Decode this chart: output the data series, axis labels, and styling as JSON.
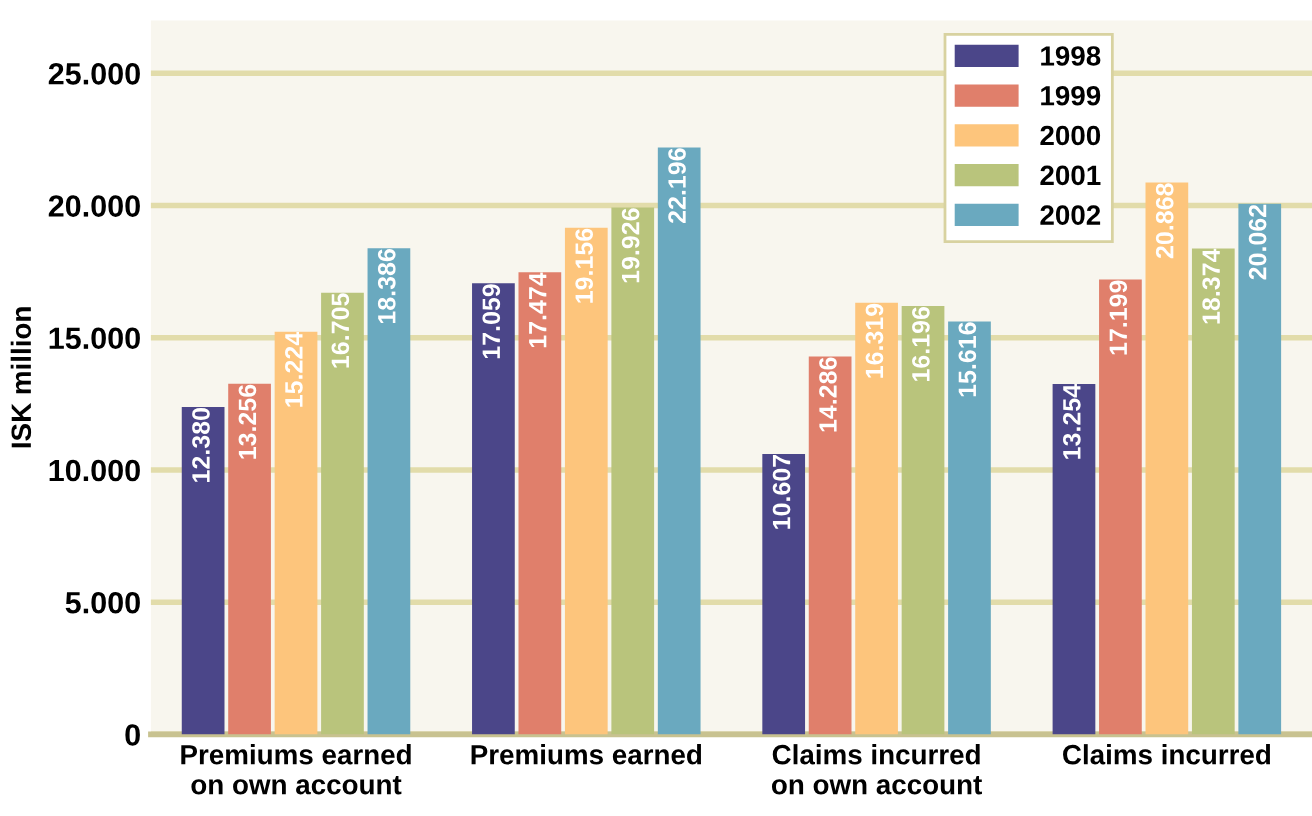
{
  "chart_data": {
    "type": "bar",
    "ylabel": "ISK million",
    "categories": [
      "Premiums earned\non own account",
      "Premiums earned",
      "Claims incurred\non own account",
      "Claims incurred"
    ],
    "series": [
      {
        "name": "1998",
        "color": "#4b4689",
        "values": [
          12380,
          17059,
          10607,
          13254
        ],
        "value_labels": [
          "12.380",
          "17.059",
          "10.607",
          "13.254"
        ]
      },
      {
        "name": "1999",
        "color": "#e07f6b",
        "values": [
          13256,
          17474,
          14286,
          17199
        ],
        "value_labels": [
          "13.256",
          "17.474",
          "14.286",
          "17.199"
        ]
      },
      {
        "name": "2000",
        "color": "#fdc57c",
        "values": [
          15224,
          19156,
          16319,
          20868
        ],
        "value_labels": [
          "15.224",
          "19.156",
          "16.319",
          "20.868"
        ]
      },
      {
        "name": "2001",
        "color": "#b9c47c",
        "values": [
          16705,
          19926,
          16196,
          18374
        ],
        "value_labels": [
          "16.705",
          "19.926",
          "16.196",
          "18.374"
        ]
      },
      {
        "name": "2002",
        "color": "#6aa9bf",
        "values": [
          18386,
          22196,
          15616,
          20062
        ],
        "value_labels": [
          "18.386",
          "22.196",
          "15.616",
          "20.062"
        ]
      }
    ],
    "ylim": [
      0,
      27000
    ],
    "yticks": [
      {
        "value": 0,
        "label": "0"
      },
      {
        "value": 5000,
        "label": "5.000"
      },
      {
        "value": 10000,
        "label": "10.000"
      },
      {
        "value": 15000,
        "label": "15.000"
      },
      {
        "value": 20000,
        "label": "20.000"
      },
      {
        "value": 25000,
        "label": "25.000"
      }
    ],
    "grid": "y",
    "legend": "top right"
  }
}
